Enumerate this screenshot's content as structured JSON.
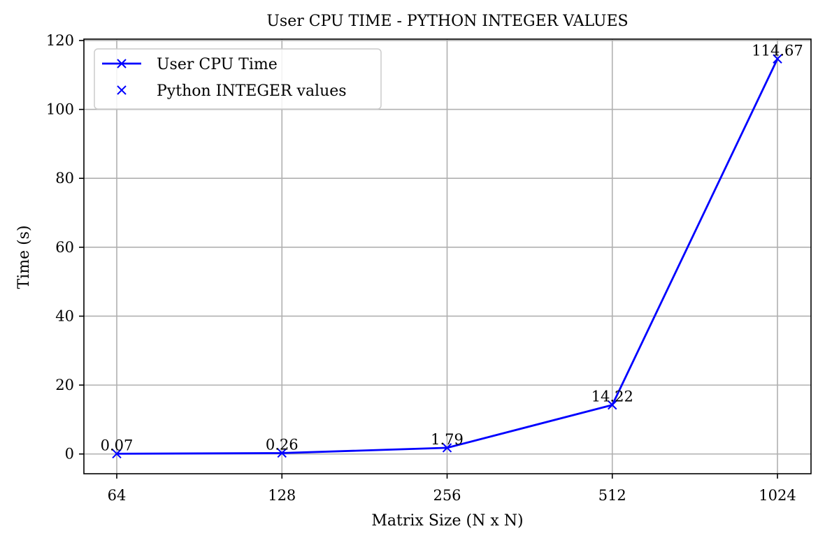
{
  "chart_data": {
    "type": "line",
    "title": "User CPU TIME - PYTHON INTEGER VALUES",
    "xlabel": "Matrix Size (N x N)",
    "ylabel": "Time (s)",
    "categories": [
      "64",
      "128",
      "256",
      "512",
      "1024"
    ],
    "series": [
      {
        "name": "User CPU Time",
        "values": [
          0.07,
          0.26,
          1.79,
          14.22,
          114.67
        ],
        "color": "#0000ff",
        "marker": "x"
      }
    ],
    "data_labels": [
      "0.07",
      "0.26",
      "1.79",
      "14.22",
      "114.67"
    ],
    "legend": [
      {
        "label": "User CPU Time",
        "style": "line-marker"
      },
      {
        "label": "Python INTEGER values",
        "style": "marker"
      }
    ],
    "legend_position": "top-left",
    "ylim": [
      -5.73,
      120.4
    ],
    "yticks": [
      0,
      20,
      40,
      60,
      80,
      100,
      120
    ],
    "grid": true
  }
}
